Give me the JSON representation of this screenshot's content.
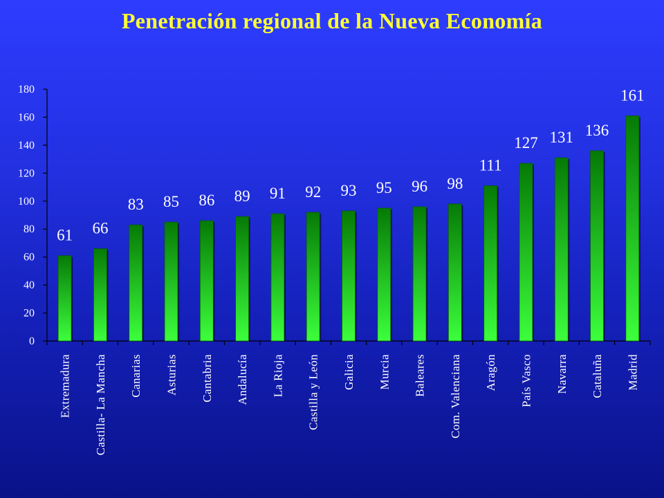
{
  "slide": {
    "title": "Penetración regional de la Nueva Economía"
  },
  "colors": {
    "title": "#ffff33",
    "bar_top": "#067a06",
    "bar_bottom": "#3cff3c",
    "axis": "#000000",
    "labels": "#ffffff"
  },
  "chart_data": {
    "type": "bar",
    "title": "Penetración regional de la Nueva Economía",
    "xlabel": "",
    "ylabel": "",
    "ylim": [
      0,
      180
    ],
    "yticks": [
      0,
      20,
      40,
      60,
      80,
      100,
      120,
      140,
      160,
      180
    ],
    "grid": false,
    "legend": "none",
    "categories": [
      "Extremadura",
      "Castilla- La Mancha",
      "Canarias",
      "Asturias",
      "Cantabria",
      "Andalucía",
      "La Rioja",
      "Castilla y León",
      "Galicia",
      "Murcia",
      "Baleares",
      "Com. Valenciana",
      "Aragón",
      "País Vasco",
      "Navarra",
      "Cataluña",
      "Madrid"
    ],
    "values": [
      61,
      66,
      83,
      85,
      86,
      89,
      91,
      92,
      93,
      95,
      96,
      98,
      111,
      127,
      131,
      136,
      161
    ]
  }
}
